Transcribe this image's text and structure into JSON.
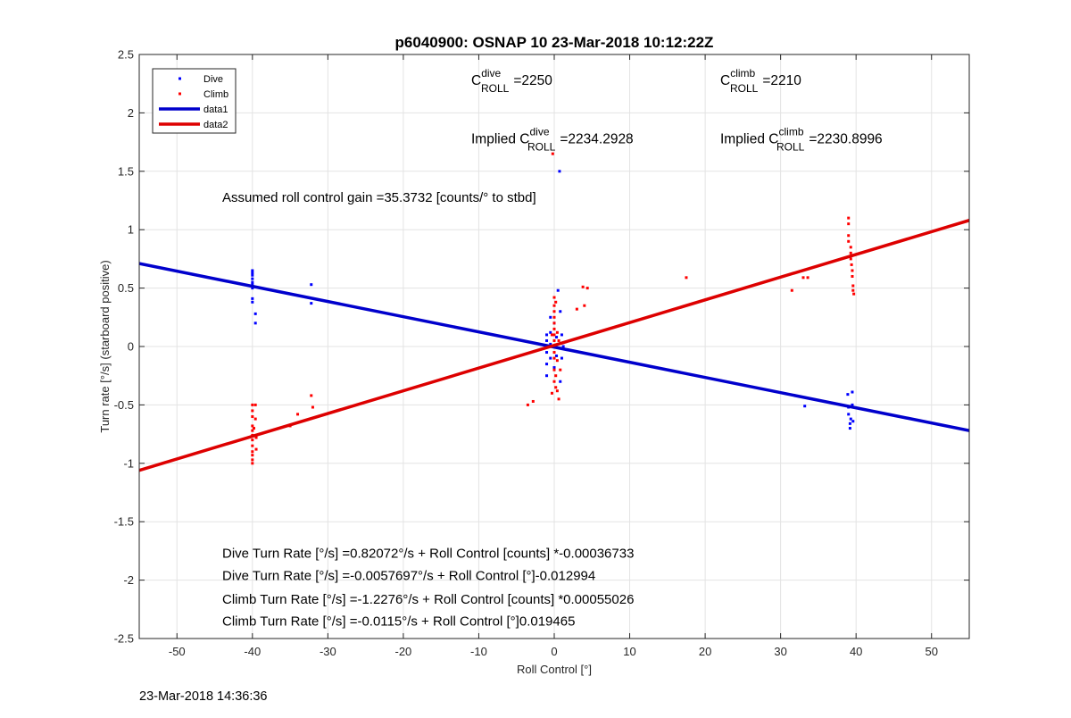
{
  "chart_data": {
    "type": "scatter",
    "title": "p6040900: OSNAP 10 23-Mar-2018 10:12:22Z",
    "xlabel": "Roll Control [°]",
    "ylabel": "Turn rate [°/s] (starboard positive)",
    "xlim": [
      -55,
      55
    ],
    "ylim": [
      -2.5,
      2.5
    ],
    "xticks": [
      -50,
      -40,
      -30,
      -20,
      -10,
      0,
      10,
      20,
      30,
      40,
      50
    ],
    "yticks": [
      -2.5,
      -2,
      -1.5,
      -1,
      -0.5,
      0,
      0.5,
      1,
      1.5,
      2,
      2.5
    ],
    "xtick_labels": [
      "-50",
      "-40",
      "-30",
      "-20",
      "-10",
      "0",
      "10",
      "20",
      "30",
      "40",
      "50"
    ],
    "ytick_labels": [
      "-2.5",
      "-2",
      "-1.5",
      "-1",
      "-0.5",
      "0",
      "0.5",
      "1",
      "1.5",
      "2",
      "2.5"
    ],
    "grid": true,
    "legend_position": "top-left",
    "legend": [
      "Dive",
      "Climb",
      "data1",
      "data2"
    ],
    "series": [
      {
        "name": "Dive",
        "kind": "points",
        "color": "#0000ff",
        "x": [
          -40,
          -40,
          -40,
          -40,
          -40,
          -40,
          -40,
          -40,
          -40,
          -39.6,
          -39.6,
          -32.2,
          -32.2,
          -1,
          -1,
          -1,
          -1,
          -1,
          -0.5,
          -0.5,
          -0.5,
          -0.5,
          0,
          0,
          0,
          0.3,
          0.3,
          0.5,
          0.8,
          0.8,
          1,
          1,
          1.2,
          0.7,
          33.2,
          38.9,
          39,
          39,
          39.2,
          39.2,
          39.3,
          39.5,
          39.5,
          39.6
        ],
        "y": [
          0.65,
          0.63,
          0.61,
          0.58,
          0.55,
          0.53,
          0.5,
          0.41,
          0.38,
          0.28,
          0.2,
          0.53,
          0.37,
          0.1,
          0.05,
          -0.05,
          -0.15,
          -0.25,
          0.25,
          0.12,
          0.02,
          -0.1,
          0.2,
          0.0,
          -0.18,
          0.08,
          -0.08,
          0.48,
          0.3,
          -0.3,
          0.1,
          -0.1,
          0.0,
          1.5,
          -0.51,
          -0.41,
          -0.52,
          -0.58,
          -0.66,
          -0.7,
          -0.62,
          -0.39,
          -0.5,
          -0.64
        ]
      },
      {
        "name": "Climb",
        "kind": "points",
        "color": "#ff0000",
        "x": [
          -40,
          -40,
          -40,
          -40,
          -40,
          -40,
          -40,
          -40,
          -40,
          -40,
          -40,
          -40,
          -39.6,
          -39.6,
          -39.5,
          -39.5,
          -39.8,
          -35,
          -34,
          -32.2,
          -32,
          -3.5,
          -2.8,
          -0.2,
          0,
          0,
          0,
          0,
          0,
          0,
          0,
          0,
          0,
          0,
          0,
          0,
          0,
          0.2,
          0.2,
          0.2,
          0.4,
          0.4,
          0.4,
          0.6,
          0.6,
          0.8,
          -0.3,
          -0.3,
          3,
          3.8,
          4,
          4.4,
          17.5,
          31.5,
          33,
          33.6,
          39,
          39,
          39,
          39,
          39.3,
          39.3,
          39.3,
          39.4,
          39.5,
          39.5,
          39.6,
          39.6,
          39.7
        ],
        "y": [
          -0.5,
          -0.55,
          -0.6,
          -0.68,
          -0.72,
          -0.76,
          -0.8,
          -0.85,
          -0.9,
          -0.93,
          -0.97,
          -1.0,
          -0.5,
          -0.62,
          -0.78,
          -0.88,
          -0.7,
          -0.68,
          -0.58,
          -0.42,
          -0.52,
          -0.5,
          -0.47,
          1.65,
          0.42,
          0.35,
          0.3,
          0.25,
          0.2,
          0.15,
          0.1,
          0.05,
          0,
          -0.05,
          -0.1,
          -0.2,
          -0.3,
          0.38,
          -0.25,
          -0.35,
          0.12,
          -0.12,
          -0.38,
          0.05,
          -0.45,
          -0.2,
          0.1,
          -0.4,
          0.32,
          0.51,
          0.35,
          0.5,
          0.59,
          0.48,
          0.59,
          0.59,
          1.1,
          1.05,
          0.95,
          0.9,
          0.85,
          0.8,
          0.75,
          0.7,
          0.65,
          0.6,
          0.52,
          0.48,
          0.45
        ]
      },
      {
        "name": "data1",
        "kind": "line",
        "color": "#0000cc",
        "x": [
          -55,
          55
        ],
        "y": [
          0.71,
          -0.72
        ]
      },
      {
        "name": "data2",
        "kind": "line",
        "color": "#dd0000",
        "x": [
          -55,
          55
        ],
        "y": [
          -1.06,
          1.08
        ]
      }
    ],
    "annotations": [
      {
        "key": "c_dive",
        "base": "C",
        "sup": "dive",
        "sub": "ROLL",
        "text": "=2250",
        "x": -11,
        "y": 2.24
      },
      {
        "key": "c_climb",
        "base": "C",
        "sup": "climb",
        "sub": "ROLL",
        "text": "=2210",
        "x": 22,
        "y": 2.24
      },
      {
        "key": "implied_dive",
        "prefix": "Implied ",
        "base": "C",
        "sup": "dive",
        "sub": "ROLL",
        "text": "=2234.2928",
        "x": -11,
        "y": 1.74
      },
      {
        "key": "implied_climb",
        "prefix": "Implied ",
        "base": "C",
        "sup": "climb",
        "sub": "ROLL",
        "text": "=2230.8996",
        "x": 22,
        "y": 1.74
      },
      {
        "key": "gain",
        "text": "Assumed roll control gain =35.3732 [counts/° to stbd]",
        "x": -44,
        "y": 1.24
      },
      {
        "key": "fit1",
        "text": "Dive Turn Rate [°/s] =0.82072°/s + Roll Control [counts] *-0.00036733",
        "x": -44,
        "y": -1.81
      },
      {
        "key": "fit2",
        "text": "Dive Turn Rate [°/s] =-0.0057697°/s + Roll Control [°]-0.012994",
        "x": -44,
        "y": -2.0
      },
      {
        "key": "fit3",
        "text": "Climb Turn Rate [°/s] =-1.2276°/s + Roll Control [counts] *0.00055026",
        "x": -44,
        "y": -2.2
      },
      {
        "key": "fit4",
        "text": "Climb Turn Rate [°/s] =-0.0115°/s + Roll Control [°]0.019465",
        "x": -44,
        "y": -2.39
      }
    ]
  },
  "footer": {
    "timestamp": "23-Mar-2018 14:36:36"
  }
}
